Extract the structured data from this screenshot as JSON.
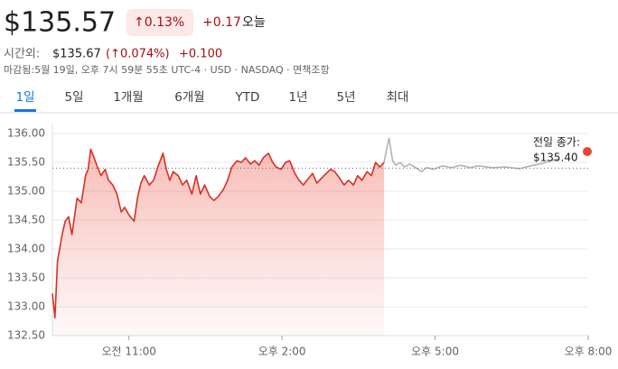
{
  "header": {
    "price": "$135.57",
    "change_percent": "↑0.13%",
    "change": "+0.17",
    "change_period": "오늘",
    "after_hours": {
      "label": "시간외:",
      "price": "$135.67",
      "change_percent": "(↑0.074%)",
      "change": "+0.100"
    },
    "status": "마감됨:5월 19일, 오후 7시 59분 55초 UTC-4 · USD · NASDAQ · 면책조항"
  },
  "tabs": {
    "items": [
      "1일",
      "5일",
      "1개월",
      "6개월",
      "YTD",
      "1년",
      "5년",
      "최대"
    ],
    "selected": 0
  },
  "chart_data": {
    "type": "line",
    "xlim": [
      570,
      1200
    ],
    "xticks": [
      {
        "value": 660,
        "label": "오전 11:00"
      },
      {
        "value": 840,
        "label": "오후 2:00"
      },
      {
        "value": 1020,
        "label": "오후 5:00"
      },
      {
        "value": 1200,
        "label": "오후 8:00"
      }
    ],
    "ylim": [
      132.5,
      136.0
    ],
    "yticks": [
      {
        "value": 132.5,
        "label": "132.50"
      },
      {
        "value": 133.0,
        "label": "133.00"
      },
      {
        "value": 133.5,
        "label": "133.50"
      },
      {
        "value": 134.0,
        "label": "134.00"
      },
      {
        "value": 134.5,
        "label": "134.50"
      },
      {
        "value": 135.0,
        "label": "135.00"
      },
      {
        "value": 135.5,
        "label": "135.50"
      },
      {
        "value": 136.0,
        "label": "136.00"
      }
    ],
    "grid": true,
    "series": [
      {
        "color": "#d93025",
        "fill": true,
        "x": [
          570,
          573,
          576,
          581,
          585,
          589,
          593,
          599,
          604,
          609,
          612,
          615,
          619,
          623,
          627,
          632,
          636,
          641,
          646,
          651,
          655,
          660,
          666,
          670,
          674,
          678,
          684,
          689,
          694,
          700,
          704,
          708,
          712,
          718,
          723,
          728,
          734,
          739,
          744,
          749,
          755,
          760,
          765,
          771,
          776,
          781,
          787,
          792,
          797,
          803,
          808,
          813,
          818,
          824,
          829,
          833,
          839,
          844,
          849,
          855,
          860,
          865,
          871,
          876,
          881,
          886,
          892,
          897,
          902,
          908,
          913,
          918,
          924,
          929,
          934,
          940,
          945,
          950,
          955,
          960
        ],
        "values": [
          133.23,
          132.81,
          133.78,
          134.22,
          134.48,
          134.56,
          134.25,
          134.88,
          134.8,
          135.27,
          135.38,
          135.73,
          135.58,
          135.42,
          135.27,
          135.38,
          135.19,
          135.11,
          134.95,
          134.64,
          134.72,
          134.59,
          134.48,
          134.88,
          135.14,
          135.27,
          135.11,
          135.19,
          135.42,
          135.66,
          135.38,
          135.19,
          135.34,
          135.27,
          135.11,
          135.19,
          134.95,
          135.27,
          134.95,
          135.11,
          134.91,
          134.84,
          134.91,
          135.03,
          135.19,
          135.42,
          135.53,
          135.5,
          135.58,
          135.47,
          135.53,
          135.45,
          135.58,
          135.66,
          135.5,
          135.42,
          135.38,
          135.5,
          135.53,
          135.31,
          135.19,
          135.11,
          135.22,
          135.31,
          135.14,
          135.22,
          135.31,
          135.38,
          135.34,
          135.22,
          135.11,
          135.19,
          135.11,
          135.27,
          135.19,
          135.34,
          135.27,
          135.5,
          135.42,
          135.5
        ]
      },
      {
        "color": "#b0b3b8",
        "fill": false,
        "x": [
          960,
          963,
          966,
          970,
          974,
          979,
          984,
          990,
          997,
          1004,
          1010,
          1018,
          1029,
          1039,
          1050,
          1061,
          1071,
          1087,
          1103,
          1119,
          1135,
          1146,
          1156,
          1165
        ],
        "values": [
          135.5,
          135.73,
          135.92,
          135.53,
          135.45,
          135.5,
          135.42,
          135.47,
          135.41,
          135.34,
          135.41,
          135.38,
          135.44,
          135.41,
          135.45,
          135.41,
          135.44,
          135.41,
          135.42,
          135.39,
          135.45,
          135.48,
          135.53,
          135.56
        ]
      }
    ],
    "reference_line": {
      "label": "전일 종가:",
      "value": 135.4,
      "value_label": "$135.40",
      "color": "#5f6368"
    }
  }
}
